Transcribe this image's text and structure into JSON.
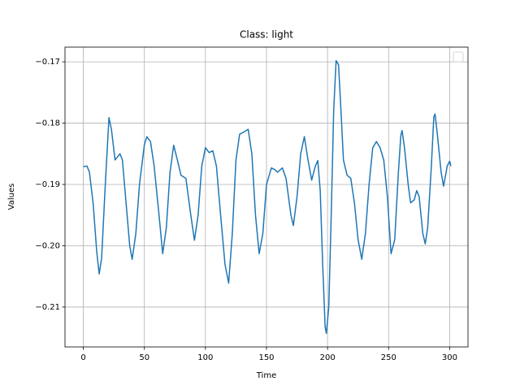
{
  "chart_data": {
    "type": "line",
    "title": "Class: light",
    "xlabel": "Time",
    "ylabel": "Values",
    "x": [
      0,
      3,
      5,
      8,
      11,
      13,
      15,
      18,
      21,
      23,
      26,
      30,
      32,
      35,
      38,
      40,
      43,
      46,
      50,
      52,
      55,
      58,
      62,
      65,
      68,
      71,
      74,
      77,
      80,
      84,
      88,
      91,
      94,
      97,
      100,
      103,
      106,
      109,
      112,
      116,
      119,
      122,
      125,
      128,
      131,
      135,
      138,
      141,
      144,
      147,
      150,
      154,
      157,
      159,
      163,
      166,
      170,
      172,
      175,
      178,
      181,
      184,
      187,
      190,
      192,
      194,
      196,
      198,
      199,
      201,
      203,
      205,
      207,
      209,
      211,
      213,
      216,
      219,
      222,
      225,
      228,
      231,
      234,
      237,
      240,
      243,
      246,
      249,
      252,
      255,
      258,
      260,
      261,
      263,
      266,
      268,
      271,
      273,
      275,
      278,
      280,
      282,
      285,
      287,
      288,
      290,
      293,
      295,
      298,
      300,
      301
    ],
    "series": [
      {
        "color": "#1f77b4",
        "values": [
          -0.1871,
          -0.187,
          -0.188,
          -0.193,
          -0.201,
          -0.2046,
          -0.202,
          -0.19,
          -0.1791,
          -0.181,
          -0.186,
          -0.185,
          -0.186,
          -0.193,
          -0.2,
          -0.2022,
          -0.198,
          -0.19,
          -0.1835,
          -0.1822,
          -0.183,
          -0.187,
          -0.195,
          -0.2013,
          -0.197,
          -0.188,
          -0.1836,
          -0.186,
          -0.1885,
          -0.189,
          -0.195,
          -0.1991,
          -0.195,
          -0.187,
          -0.184,
          -0.1848,
          -0.1845,
          -0.187,
          -0.194,
          -0.203,
          -0.2061,
          -0.198,
          -0.186,
          -0.1818,
          -0.1815,
          -0.181,
          -0.185,
          -0.195,
          -0.2013,
          -0.198,
          -0.19,
          -0.1873,
          -0.1876,
          -0.188,
          -0.1873,
          -0.189,
          -0.195,
          -0.1967,
          -0.192,
          -0.185,
          -0.1822,
          -0.186,
          -0.1893,
          -0.187,
          -0.1861,
          -0.191,
          -0.203,
          -0.2132,
          -0.2143,
          -0.21,
          -0.195,
          -0.178,
          -0.1698,
          -0.1705,
          -0.178,
          -0.186,
          -0.1885,
          -0.189,
          -0.193,
          -0.199,
          -0.2022,
          -0.198,
          -0.19,
          -0.184,
          -0.183,
          -0.184,
          -0.186,
          -0.192,
          -0.2013,
          -0.199,
          -0.188,
          -0.182,
          -0.1812,
          -0.184,
          -0.19,
          -0.193,
          -0.1925,
          -0.191,
          -0.192,
          -0.198,
          -0.1997,
          -0.197,
          -0.187,
          -0.179,
          -0.1785,
          -0.182,
          -0.188,
          -0.1903,
          -0.187,
          -0.1862,
          -0.187
        ]
      }
    ],
    "xlim": [
      -15,
      315
    ],
    "ylim": [
      -0.2165,
      -0.1676
    ],
    "xticks": [
      0,
      50,
      100,
      150,
      200,
      250,
      300
    ],
    "yticks": [
      {
        "value": -0.21,
        "label": "−0.21"
      },
      {
        "value": -0.2,
        "label": "−0.20"
      },
      {
        "value": -0.19,
        "label": "−0.19"
      },
      {
        "value": -0.18,
        "label": "−0.18"
      },
      {
        "value": -0.17,
        "label": "−0.17"
      }
    ],
    "grid": true,
    "legend": "upper right"
  }
}
